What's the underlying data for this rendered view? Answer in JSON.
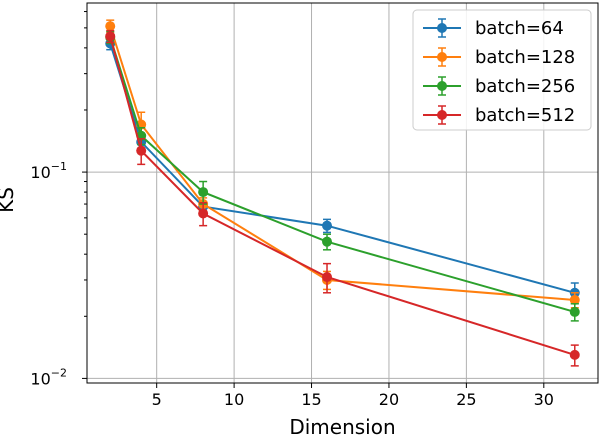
{
  "chart_data": {
    "type": "line",
    "title": "",
    "xlabel": "Dimension",
    "ylabel": "KS",
    "xscale": "linear",
    "yscale": "log",
    "xlim": [
      0.5,
      33.5
    ],
    "ylim": [
      0.0095,
      0.66
    ],
    "xticks": [
      5,
      10,
      15,
      20,
      25,
      30
    ],
    "xtick_labels": [
      "5",
      "10",
      "15",
      "20",
      "25",
      "30"
    ],
    "yticks": [
      0.01,
      0.1
    ],
    "ytick_labels": [
      {
        "base": "10",
        "exp": "−2"
      },
      {
        "base": "10",
        "exp": "−1"
      }
    ],
    "grid": true,
    "legend_position": "top-right",
    "x": [
      2,
      4,
      8,
      16,
      32
    ],
    "series": [
      {
        "name": "batch=64",
        "color": "#1f77b4",
        "values": [
          0.42,
          0.14,
          0.068,
          0.055,
          0.026
        ],
        "errors": [
          0.028,
          0.012,
          0.004,
          0.004,
          0.003
        ]
      },
      {
        "name": "batch=128",
        "color": "#ff7f0e",
        "values": [
          0.51,
          0.17,
          0.07,
          0.03,
          0.024
        ],
        "errors": [
          0.035,
          0.025,
          0.005,
          0.003,
          0.002
        ]
      },
      {
        "name": "batch=256",
        "color": "#2ca02c",
        "values": [
          0.45,
          0.15,
          0.08,
          0.046,
          0.021
        ],
        "errors": [
          0.03,
          0.014,
          0.01,
          0.004,
          0.002
        ]
      },
      {
        "name": "batch=512",
        "color": "#d62728",
        "values": [
          0.455,
          0.127,
          0.063,
          0.031,
          0.013
        ],
        "errors": [
          0.03,
          0.018,
          0.008,
          0.005,
          0.0015
        ]
      }
    ]
  }
}
